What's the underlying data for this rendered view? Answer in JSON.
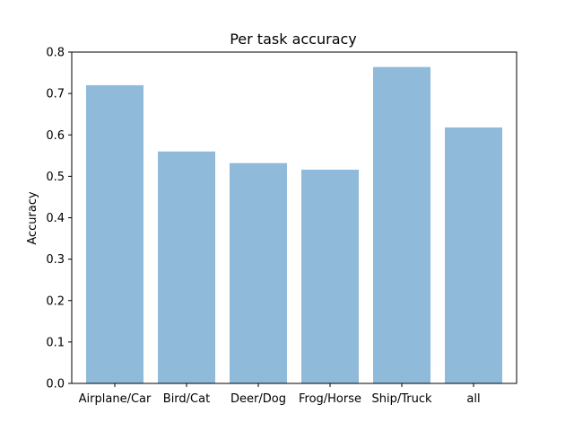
{
  "chart_data": {
    "type": "bar",
    "title": "Per task accuracy",
    "xlabel": "",
    "ylabel": "Accuracy",
    "categories": [
      "Airplane/Car",
      "Bird/Cat",
      "Deer/Dog",
      "Frog/Horse",
      "Ship/Truck",
      "all"
    ],
    "values": [
      0.72,
      0.56,
      0.532,
      0.516,
      0.764,
      0.618
    ],
    "ylim": [
      0.0,
      0.8
    ],
    "yticks": [
      "0.0",
      "0.1",
      "0.2",
      "0.3",
      "0.4",
      "0.5",
      "0.6",
      "0.7",
      "0.8"
    ],
    "bar_color": "#8fbad9",
    "grid": false,
    "legend": "none"
  }
}
